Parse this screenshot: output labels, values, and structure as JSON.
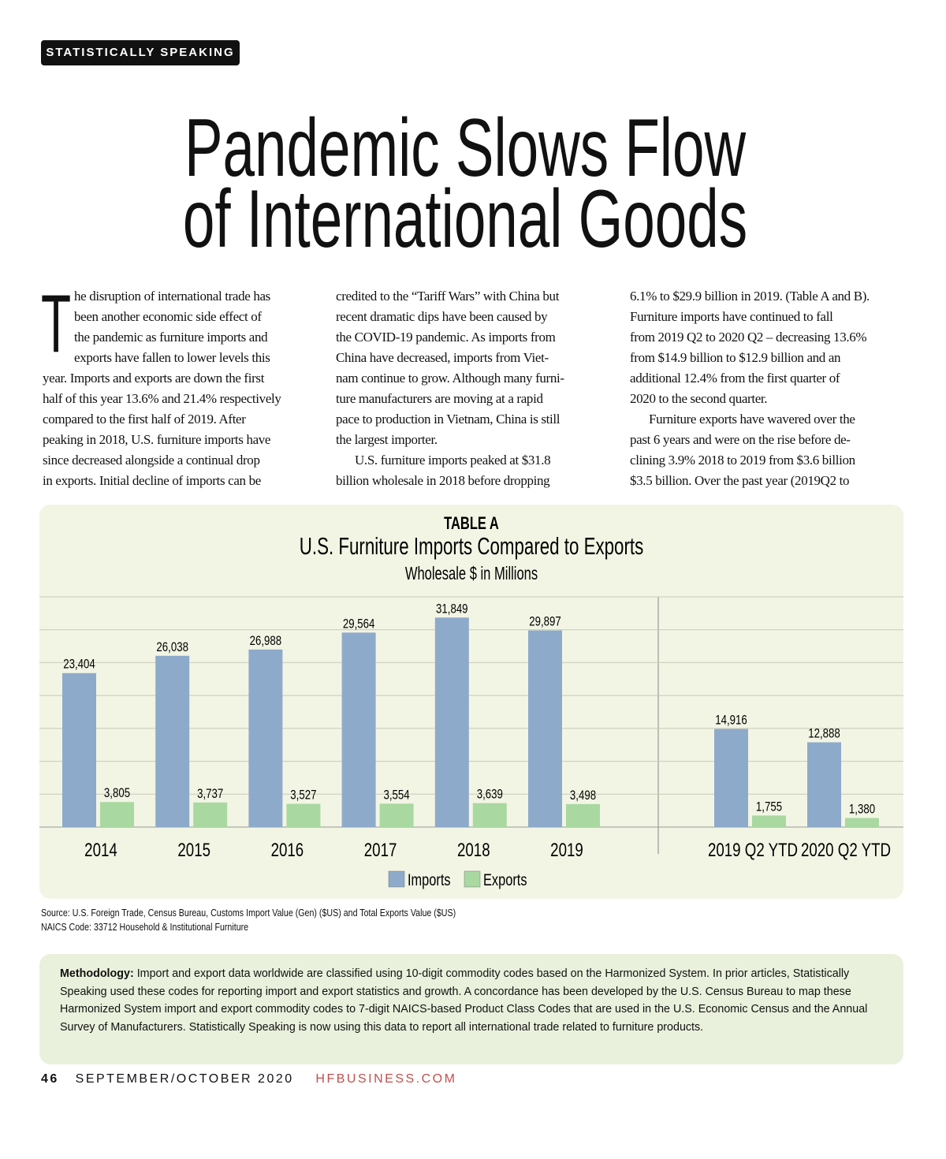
{
  "header": {
    "tag": "STATISTICALLY SPEAKING"
  },
  "title_lines": [
    "Pandemic Slows Flow",
    "of International Goods"
  ],
  "body": {
    "drop_cap": "T",
    "columns": [
      [
        [
          "he disruption of international trade has",
          "been another economic side effect of",
          "the pandemic as furniture imports and",
          "exports have fallen to lower levels this",
          "year. Imports and exports are down the first",
          "half of this year 13.6% and 21.4% respectively",
          "compared to the first half of 2019. After",
          "peaking in 2018, U.S. furniture imports have",
          "since decreased alongside a continual drop",
          "in exports. Initial decline of imports can be"
        ]
      ],
      [
        [
          "credited to the “Tariff Wars” with China but",
          "recent dramatic dips have been caused by",
          "the COVID-19 pandemic. As imports from",
          "China have decreased, imports from Viet-",
          "nam continue to grow. Although many furni-",
          "ture manufacturers are moving at a rapid",
          "pace to production in Vietnam, China is still",
          "the largest importer."
        ],
        [
          "U.S. furniture imports peaked at $31.8",
          "billion wholesale in 2018 before dropping"
        ]
      ],
      [
        [
          "6.1% to $29.9 billion in 2019. (Table A and B).",
          "Furniture imports have continued to fall",
          "from 2019 Q2 to 2020 Q2 – decreasing 13.6%",
          "from $14.9 billion to $12.9 billion and an",
          "additional 12.4% from the first quarter of",
          "2020 to the second quarter."
        ],
        [
          "Furniture exports have wavered over the",
          "past 6 years and were on the rise before de-",
          "clining 3.9% 2018 to 2019 from $3.6 billion",
          "$3.5 billion. Over the past year (2019Q2 to"
        ]
      ]
    ]
  },
  "chart_data": {
    "type": "bar",
    "label": "TABLE A",
    "title": "U.S. Furniture Imports Compared to Exports",
    "subtitle": "Wholesale $ in Millions",
    "categories": [
      "2014",
      "2015",
      "2016",
      "2017",
      "2018",
      "2019",
      "2019 Q2 YTD",
      "2020 Q2 YTD"
    ],
    "series": [
      {
        "name": "Imports",
        "color": "#8eaacb",
        "values": [
          23404,
          26038,
          26988,
          29564,
          31849,
          29897,
          14916,
          12888
        ],
        "value_labels": [
          "23,404",
          "26,038",
          "26,988",
          "29,564",
          "31,849",
          "29,897",
          "14,916",
          "12,888"
        ]
      },
      {
        "name": "Exports",
        "color": "#a9d8a0",
        "values": [
          3805,
          3737,
          3527,
          3554,
          3639,
          3498,
          1755,
          1380
        ],
        "value_labels": [
          "3,805",
          "3,737",
          "3,527",
          "3,554",
          "3,639",
          "3,498",
          "1,755",
          "1,380"
        ]
      }
    ],
    "ylim": [
      0,
      35000
    ],
    "yticks": [
      0,
      5000,
      10000,
      15000,
      20000,
      25000,
      30000,
      35000
    ],
    "grid": true,
    "legend": "bottom"
  },
  "source_lines": [
    "Source: U.S. Foreign Trade, Census Bureau, Customs Import Value (Gen) ($US) and Total Exports Value ($US)",
    "NAICS Code: 33712 Household & Institutional Furniture"
  ],
  "methodology": {
    "label": "Methodology:",
    "text": "Import and export data worldwide are classified using 10-digit commodity codes based on the Harmonized System. In prior articles, Statistically Speaking used these codes for reporting import and export statistics and growth. A concordance has been developed by the U.S. Census Bureau to map these Harmonized System import and export commodity codes to 7-digit NAICS-based Product Class Codes that are used in the U.S. Economic Census and the Annual Survey of Manufacturers. Statistically Speaking is now using this data to report all international trade related to furniture products."
  },
  "footer": {
    "page": "46",
    "issue": "SEPTEMBER/OCTOBER 2020",
    "site": "HFBUSINESS.COM"
  }
}
